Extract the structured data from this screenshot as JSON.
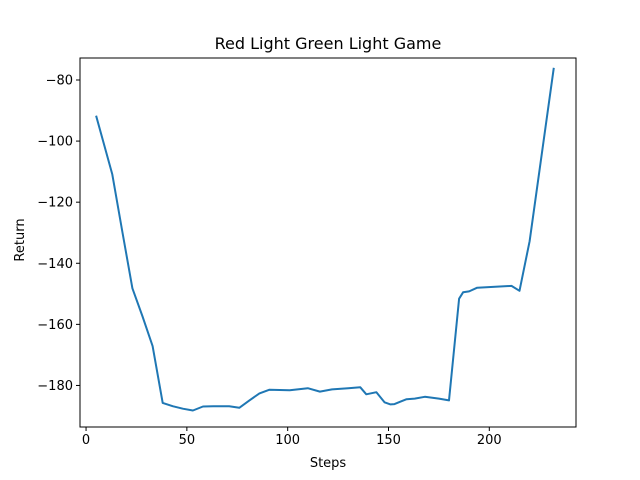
{
  "chart_data": {
    "type": "line",
    "title": "Red Light Green Light Game",
    "xlabel": "Steps",
    "ylabel": "Return",
    "xlim": [
      -3,
      243
    ],
    "ylim": [
      -193.6,
      -72.8
    ],
    "xticks": [
      0,
      50,
      100,
      150,
      200
    ],
    "yticks": [
      -180,
      -160,
      -140,
      -120,
      -100,
      -80
    ],
    "xtick_labels": [
      "0",
      "50",
      "100",
      "150",
      "200"
    ],
    "ytick_labels": [
      "−180",
      "−160",
      "−140",
      "−120",
      "−100",
      "−80"
    ],
    "grid": false,
    "legend": "none",
    "series": [
      {
        "color": "#1f77b4",
        "x": [
          5,
          13,
          18,
          23,
          28,
          33,
          38,
          43,
          48,
          53,
          58,
          63,
          71,
          76,
          81,
          86,
          91,
          101,
          110,
          116,
          122,
          130,
          136,
          139,
          144,
          148,
          151,
          153,
          156,
          159,
          163,
          168,
          175,
          180,
          185,
          187,
          190,
          194,
          203,
          211,
          215,
          220,
          232
        ],
        "y": [
          -91.7,
          -110.9,
          -129.6,
          -148.2,
          -157.4,
          -167.1,
          -185.7,
          -186.8,
          -187.6,
          -188.2,
          -186.9,
          -186.8,
          -186.8,
          -187.3,
          -184.9,
          -182.6,
          -181.4,
          -181.6,
          -180.9,
          -182.0,
          -181.3,
          -180.9,
          -180.6,
          -182.9,
          -182.2,
          -185.5,
          -186.2,
          -186.1,
          -185.3,
          -184.5,
          -184.3,
          -183.7,
          -184.3,
          -184.9,
          -151.6,
          -149.5,
          -149.2,
          -148.0,
          -147.7,
          -147.4,
          -149.0,
          -132.8,
          -76.0
        ]
      }
    ]
  }
}
